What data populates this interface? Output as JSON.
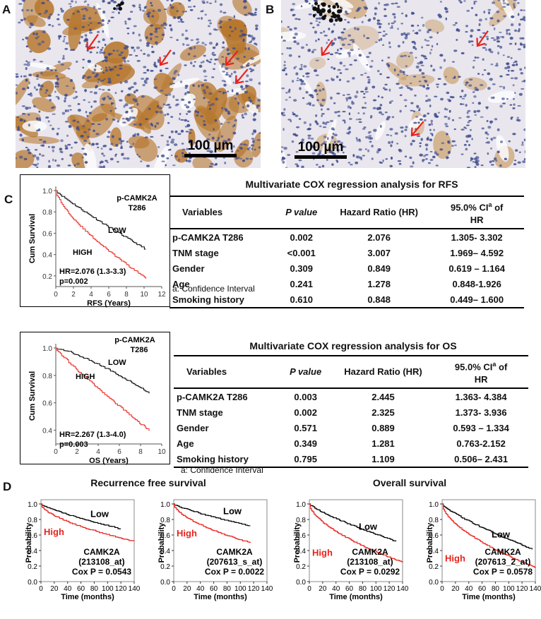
{
  "panel_labels": {
    "a": "A",
    "b": "B",
    "c": "C",
    "d": "D"
  },
  "micrographs": {
    "a": {
      "scale_label": "100 µm",
      "arrows": 4,
      "stain": "strong"
    },
    "b": {
      "scale_label": "100 µm",
      "arrows": 3,
      "stain": "weak"
    }
  },
  "km_rfs": {
    "ylabel": "Cum Survival",
    "xlabel": "RFS (Years)",
    "marker_title_1": "p-CAMK2A",
    "marker_title_2": "T286",
    "low_label": "LOW",
    "high_label": "HIGH",
    "hr_text": "HR=2.076 (1.3-3.3)",
    "p_text": "p=0.002",
    "yticks": [
      "1.0",
      "0.8",
      "0.6",
      "0.4",
      "0.2"
    ],
    "xticks": [
      "0",
      "2",
      "4",
      "6",
      "8",
      "10",
      "12"
    ]
  },
  "km_os": {
    "ylabel": "Cum Survival",
    "xlabel": "OS (Years)",
    "marker_title_1": "p-CAMK2A",
    "marker_title_2": "T286",
    "low_label": "LOW",
    "high_label": "HIGH",
    "hr_text": "HR=2.267 (1.3-4.0)",
    "p_text": "p=0.003",
    "yticks": [
      "1.0",
      "0.8",
      "0.6",
      "0.4"
    ],
    "xticks": [
      "0",
      "2",
      "4",
      "6",
      "8",
      "10"
    ]
  },
  "table_rfs": {
    "title": "Multivariate COX regression analysis for RFS",
    "headers": [
      "Variables",
      "P value",
      "Hazard Ratio (HR)",
      "95.0% CI",
      "a",
      " of",
      "HR"
    ],
    "rows": [
      [
        "p-CAMK2A T286",
        "0.002",
        "2.076",
        "1.305- 3.302"
      ],
      [
        "TNM stage",
        "<0.001",
        "3.007",
        "1.969– 4.592"
      ],
      [
        "Gender",
        "0.309",
        "0.849",
        "0.619 – 1.164"
      ],
      [
        "Age",
        "0.241",
        "1.278",
        "0.848-1.926"
      ],
      [
        "Smoking history",
        "0.610",
        "0.848",
        "0.449– 1.600"
      ]
    ],
    "footnote": "a: Confidence Interval"
  },
  "table_os": {
    "title": "Multivariate COX regression analysis for OS",
    "headers": [
      "Variables",
      "P value",
      "Hazard Ratio (HR)",
      "95.0% CI",
      "a",
      " of",
      "HR"
    ],
    "rows": [
      [
        "p-CAMK2A T286",
        "0.003",
        "2.445",
        "1.363- 4.384"
      ],
      [
        "TNM stage",
        "0.002",
        "2.325",
        "1.373- 3.936"
      ],
      [
        "Gender",
        "0.571",
        "0.889",
        "0.593 – 1.334"
      ],
      [
        "Age",
        "0.349",
        "1.281",
        "0.763-2.152"
      ],
      [
        "Smoking history",
        "0.795",
        "1.109",
        "0.506– 2.431"
      ]
    ],
    "footnote": "a: Confidence Interval"
  },
  "panel_d": {
    "title_rfs": "Recurrence free survival",
    "title_os": "Overall survival",
    "ylabel": "Probability",
    "xlabel": "Time (months)",
    "low_label": "Low",
    "high_label": "High",
    "yticks": [
      "0.0",
      "0.2",
      "0.4",
      "0.6",
      "0.8",
      "1.0"
    ],
    "xticks": [
      "0",
      "20",
      "40",
      "60",
      "80",
      "100",
      "120",
      "140"
    ],
    "plots": [
      {
        "gene": "CAMK2A",
        "probe": "(213108_at)",
        "cox": "Cox P = 0.0543"
      },
      {
        "gene": "CAMK2A",
        "probe": "(207613_s_at)",
        "cox": "Cox P = 0.0022"
      },
      {
        "gene": "CAMK2A",
        "probe": "(213108_at)",
        "cox": "Cox P = 0.0292"
      },
      {
        "gene": "CAMK2A",
        "probe": "(207613_2_at)",
        "cox": "Cox P = 0.0578"
      }
    ]
  },
  "colors": {
    "high": "#e8231c",
    "low": "#000000",
    "arrow": "#e8231c",
    "stain": "#b7782f",
    "nuclei": "#3c4a8c"
  }
}
